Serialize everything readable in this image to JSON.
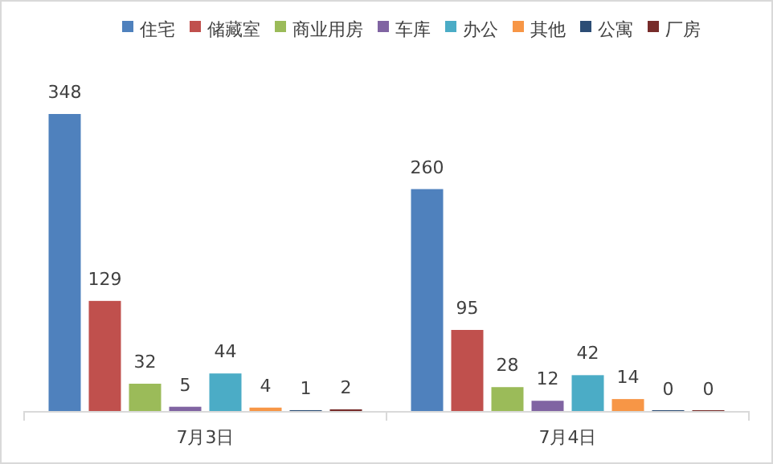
{
  "chart_data": {
    "type": "bar",
    "categories": [
      "7月3日",
      "7月4日"
    ],
    "legend": "top",
    "data_labels": true,
    "series": [
      {
        "name": "住宅",
        "color": "#4f81bd",
        "values": [
          348,
          260
        ]
      },
      {
        "name": "储藏室",
        "color": "#c0504d",
        "values": [
          129,
          95
        ]
      },
      {
        "name": "商业用房",
        "color": "#9bbb59",
        "values": [
          32,
          28
        ]
      },
      {
        "name": "车库",
        "color": "#8064a2",
        "values": [
          5,
          12
        ]
      },
      {
        "name": "办公",
        "color": "#4bacc6",
        "values": [
          44,
          42
        ]
      },
      {
        "name": "其他",
        "color": "#f79646",
        "values": [
          4,
          14
        ]
      },
      {
        "name": "公寓",
        "color": "#2c4d75",
        "values": [
          1,
          0
        ]
      },
      {
        "name": "厂房",
        "color": "#772c2a",
        "values": [
          2,
          0
        ]
      }
    ]
  }
}
